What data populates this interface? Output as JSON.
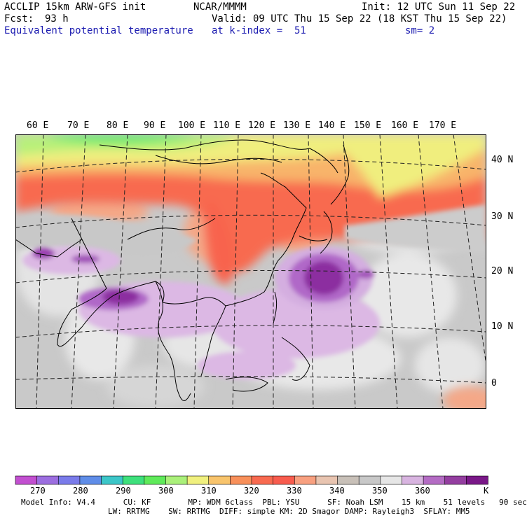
{
  "header": {
    "model": "ACCLIP 15km ARW-GFS init",
    "org": "NCAR/MMMM",
    "init": "Init: 12 UTC Sun 11 Sep 22",
    "fcst_label": "Fcst:",
    "fcst_value": "93 h",
    "valid": "Valid: 09 UTC Thu 15 Sep 22 (18 KST Thu 15 Sep 22)",
    "field": "Equivalent potential temperature",
    "level": "at k-index =  51",
    "smooth": "sm= 2"
  },
  "lon_labels": [
    "60 E",
    "70 E",
    "80 E",
    "90 E",
    "100 E",
    "110 E",
    "120 E",
    "130 E",
    "140 E",
    "150 E",
    "160 E",
    "170 E"
  ],
  "lat_labels": [
    "40 N",
    "30 N",
    "20 N",
    "10 N",
    "0"
  ],
  "colorbar": {
    "labels": [
      "270",
      "280",
      "290",
      "300",
      "310",
      "320",
      "330",
      "340",
      "350",
      "360"
    ],
    "unit": "K",
    "colors": [
      "#c24fd0",
      "#9c6ee0",
      "#7a7bea",
      "#5f8de8",
      "#3cc6c8",
      "#3ee07c",
      "#5fea5a",
      "#aaf07a",
      "#f0f07e",
      "#f8c46c",
      "#f8905a",
      "#f86a50",
      "#f85c4e",
      "#f8a080",
      "#e8c4b0",
      "#c8c0b8",
      "#c8c8c8",
      "#e6e6e6",
      "#d8b4e0",
      "#b46cc4",
      "#943ea0",
      "#7a1888"
    ]
  },
  "footer": {
    "line1": "Model Info: V4.4      CU: KF        MP: WDM 6class  PBL: YSU      SF: Noah LSM    15 km    51 levels   90 sec",
    "line2": "LW: RRTMG    SW: RRTMG  DIFF: simple KM: 2D Smagor DAMP: Rayleigh3  SFLAY: MM5"
  }
}
